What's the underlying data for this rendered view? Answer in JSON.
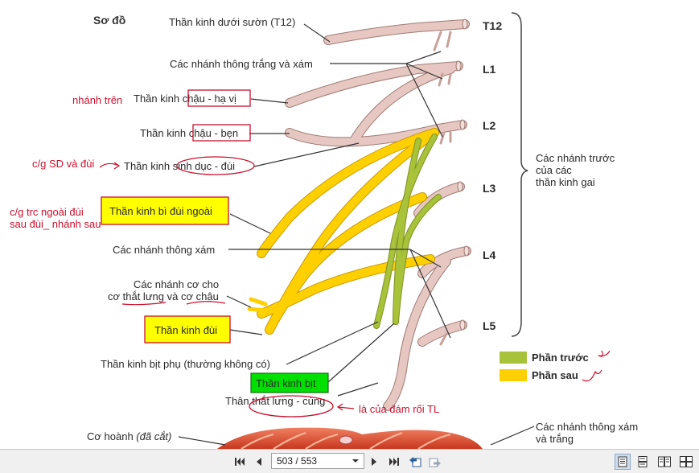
{
  "figure": {
    "title": "Sơ đồ",
    "labels": {
      "subcostal": "Thần kinh dưới sườn (T12)",
      "rami_comm_wg": "Các nhánh thông trắng và xám",
      "iliohypogastric_pre": "Thần kinh ",
      "iliohypogastric_box": "chậu - hạ vị",
      "ilioinguinal_pre": "Thần kinh ",
      "ilioinguinal_box": "chậu - bẹn",
      "genitofemoral_pre": "Thần kinh ",
      "genitofemoral_oval": "sinh dục - đùi",
      "lat_femoral_cut": "Thần kinh bì đùi ngoài",
      "gray_rami": "Các nhánh thông xám",
      "muscular_1": "Các nhánh cơ cho",
      "muscular_2a": "cơ ",
      "muscular_2b": "thắt lưng",
      "muscular_2c": " và ",
      "muscular_2d": "cơ chậu",
      "femoral": "Thần kinh đùi",
      "accessory_obturator": "Thần kinh bịt phụ (thường không có)",
      "obturator": "Thần kinh bịt",
      "lumbosacral_trunk": "Thân thắt lưng - cùng",
      "diaphragm_1": "Cơ hoành ",
      "diaphragm_2": "(đã cắt)",
      "gray_white_rami_1": "Các nhánh thông xám",
      "gray_white_rami_2": "và trắng",
      "anterior_rami_1": "Các nhánh trước",
      "anterior_rami_2": "của các",
      "anterior_rami_3": "thần kinh gai"
    },
    "levels": [
      "T12",
      "L1",
      "L2",
      "L3",
      "L4",
      "L5"
    ],
    "legend": {
      "anterior": "Phần trước",
      "posterior": "Phần sau",
      "anterior_color": "#a8c23a",
      "posterior_color": "#ffd000"
    },
    "annotations": {
      "upper_branch": "nhánh trên",
      "genitofemoral_note": "c/g SD và đùi",
      "lateral_note_1": "c/g trc ngoài đùi",
      "lateral_note_2": "sau đùi_ nhánh sau",
      "lumbosacral_note": "là của đám rối TL"
    },
    "colors": {
      "nerve_pink": "#dfb8b4",
      "nerve_yellow": "#ffd000",
      "nerve_green": "#a8c23a",
      "annotation_red": "#c8102e",
      "highlight_yellow": "#ffff00",
      "highlight_green": "#00e000"
    }
  },
  "viewer": {
    "page_display": "503 / 553",
    "buttons": {
      "first_page": "first-page",
      "prev_page": "previous-page",
      "next_page": "next-page",
      "last_page": "last-page"
    }
  }
}
